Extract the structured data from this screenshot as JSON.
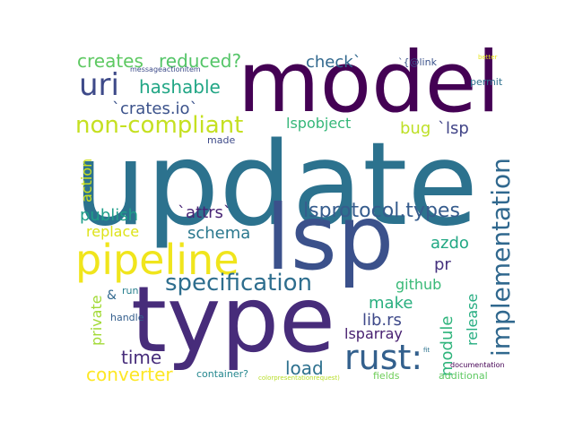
{
  "words": [
    {
      "text": "update",
      "color": "#2c728e"
    },
    {
      "text": "model",
      "color": "#440154"
    },
    {
      "text": "type",
      "color": "#472c7a"
    },
    {
      "text": "lsp",
      "color": "#3b518b"
    },
    {
      "text": "pipeline",
      "color": "#f0e51c"
    },
    {
      "text": "implementation",
      "color": "#30688e"
    },
    {
      "text": "rust:",
      "color": "#33608d"
    },
    {
      "text": "specification",
      "color": "#2e6e8e"
    },
    {
      "text": "non-compliant",
      "color": "#c5e021"
    },
    {
      "text": "uri",
      "color": "#3e4a89"
    },
    {
      "text": "lsprotocol.types",
      "color": "#365c8d"
    },
    {
      "text": "creates",
      "color": "#5ec962"
    },
    {
      "text": "reduced?",
      "color": "#54c568"
    },
    {
      "text": "hashable",
      "color": "#21a685"
    },
    {
      "text": "`crates.io`",
      "color": "#3b528b"
    },
    {
      "text": "check`",
      "color": "#31688e"
    },
    {
      "text": "bug",
      "color": "#bddf26"
    },
    {
      "text": "`lsp",
      "color": "#414487"
    },
    {
      "text": "lspobject",
      "color": "#35b779"
    },
    {
      "text": "`attrs`",
      "color": "#482475"
    },
    {
      "text": "publish",
      "color": "#1f9e89"
    },
    {
      "text": "replace",
      "color": "#dde318"
    },
    {
      "text": "schema",
      "color": "#2a788e"
    },
    {
      "text": "azdo",
      "color": "#22a884"
    },
    {
      "text": "pr",
      "color": "#46327e"
    },
    {
      "text": "github",
      "color": "#38b977"
    },
    {
      "text": "module",
      "color": "#2fb47c"
    },
    {
      "text": "release",
      "color": "#26ad81"
    },
    {
      "text": "make",
      "color": "#29af7f"
    },
    {
      "text": "lib.rs",
      "color": "#3e4989"
    },
    {
      "text": "lsparray",
      "color": "#482071"
    },
    {
      "text": "time",
      "color": "#472d7b"
    },
    {
      "text": "load",
      "color": "#2d708e"
    },
    {
      "text": "converter",
      "color": "#fde725"
    },
    {
      "text": "private",
      "color": "#a2da37"
    },
    {
      "text": "action",
      "color": "#cde11d"
    },
    {
      "text": "&",
      "color": "#31688e"
    },
    {
      "text": "run",
      "color": "#277f8e"
    },
    {
      "text": "handle",
      "color": "#355f8d"
    },
    {
      "text": "made",
      "color": "#3e4a89"
    },
    {
      "text": "container?",
      "color": "#24878e"
    },
    {
      "text": "colorpresentationrequest)",
      "color": "#b8de29"
    },
    {
      "text": "fields",
      "color": "#6ece58"
    },
    {
      "text": "additional",
      "color": "#5ec962"
    },
    {
      "text": "documentation",
      "color": "#440154"
    },
    {
      "text": "fit",
      "color": "#2c728e"
    },
    {
      "text": "permit",
      "color": "#2d708e"
    },
    {
      "text": "better",
      "color": "#e5e419"
    },
    {
      "text": "`{@link",
      "color": "#3b528b"
    },
    {
      "text": "messageactionitem",
      "color": "#3e4c8a"
    }
  ]
}
